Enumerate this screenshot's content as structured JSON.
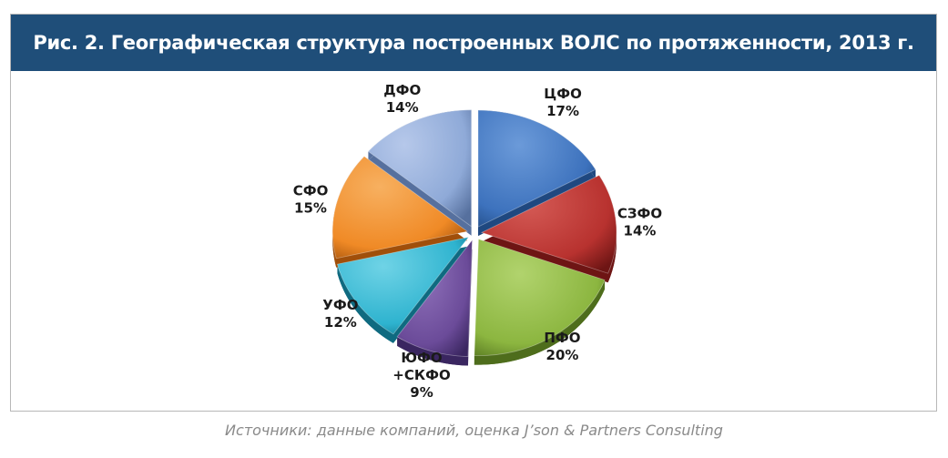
{
  "title": "Рис. 2. Географическая структура построенных ВОЛС по протяженности, 2013 г.",
  "source": "Источники: данные компаний, оценка J’son & Partners Consulting",
  "chart_data": {
    "type": "pie",
    "title": "Рис. 2. Географическая структура построенных ВОЛС по протяженности, 2013 г.",
    "slices": [
      {
        "label": "ЦФО",
        "value": 17,
        "value_label": "17%",
        "color": "#3d72bd",
        "dark": "#1f4880",
        "light": "#6b9ad9"
      },
      {
        "label": "СЗФО",
        "value": 14,
        "value_label": "14%",
        "color": "#b8322f",
        "dark": "#6e1514",
        "light": "#d45a55"
      },
      {
        "label": "ПФО",
        "value": 20,
        "value_label": "20%",
        "color": "#8cb640",
        "dark": "#4e6d1c",
        "light": "#b1d36d"
      },
      {
        "label": "ЮФО\n+СКФО",
        "value": 9,
        "value_label": "9%",
        "color": "#6b4b99",
        "dark": "#3a2660",
        "light": "#9072bb"
      },
      {
        "label": "УФО",
        "value": 12,
        "value_label": "12%",
        "color": "#2eb3cf",
        "dark": "#0f6a80",
        "light": "#6fd3e6"
      },
      {
        "label": "СФО",
        "value": 15,
        "value_label": "15%",
        "color": "#f08a26",
        "dark": "#a04f0a",
        "light": "#f7b060"
      },
      {
        "label": "ДФО",
        "value": 14,
        "value_label": "14%",
        "color": "#8faad8",
        "dark": "#56709e",
        "light": "#b6c8ea"
      }
    ],
    "exploded": true,
    "three_d": true,
    "legend": "none"
  }
}
